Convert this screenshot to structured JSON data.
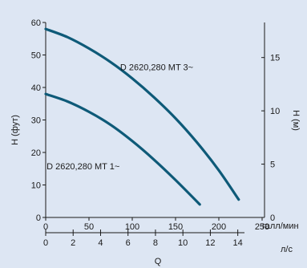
{
  "chart_data": {
    "type": "line",
    "x": {
      "label": "Q",
      "unit": "галл/мин",
      "ticks": [
        0,
        50,
        100,
        150,
        200,
        250
      ],
      "range": [
        0,
        250
      ]
    },
    "x2": {
      "unit": "л/с",
      "ticks": [
        0,
        2,
        4,
        6,
        8,
        10,
        12,
        14
      ]
    },
    "y": {
      "label": "H (фут)",
      "ticks": [
        0,
        10,
        20,
        30,
        40,
        50,
        60
      ],
      "range": [
        0,
        60
      ]
    },
    "y2": {
      "label": "H (м)",
      "ticks": [
        5,
        10,
        15
      ]
    },
    "series": [
      {
        "name": "D 2620,280 MT 3~",
        "x": [
          0,
          25,
          50,
          75,
          100,
          125,
          150,
          175,
          200,
          223
        ],
        "y": [
          58,
          55.5,
          52,
          47.8,
          42.8,
          37,
          30.5,
          23,
          14.5,
          5.5
        ]
      },
      {
        "name": "D 2620,280 MT 1~",
        "x": [
          0,
          25,
          50,
          75,
          100,
          125,
          150,
          178
        ],
        "y": [
          38,
          35.7,
          32.5,
          28.5,
          23.5,
          17.8,
          11.5,
          4
        ]
      }
    ],
    "annotations": [
      {
        "text": "D 2620,280 MT 3~",
        "x": 86,
        "y": 45.3
      },
      {
        "text": "D 2620,280 MT 1~",
        "x": 1,
        "y": 14.8
      }
    ],
    "color": "#0e5a78",
    "grid": false
  }
}
